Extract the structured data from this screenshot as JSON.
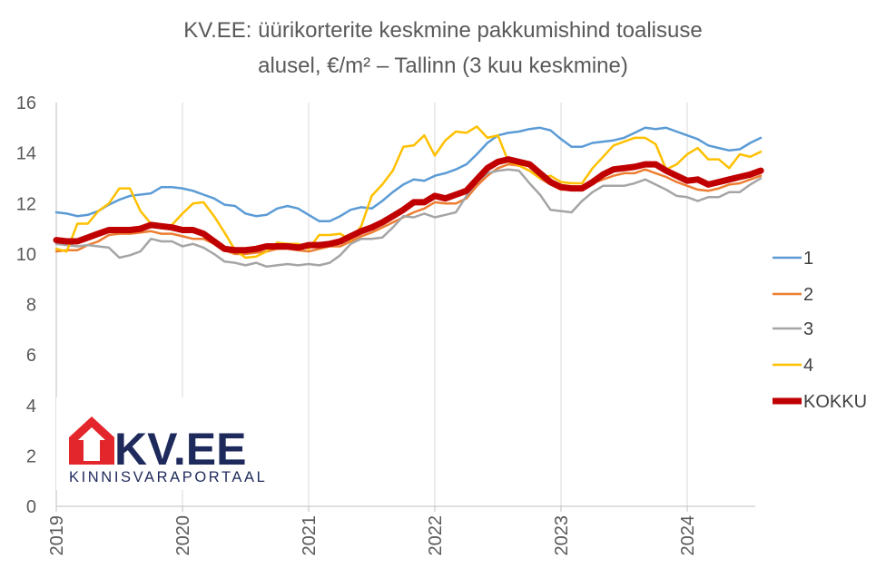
{
  "chart_data": {
    "type": "line",
    "title_lines": [
      "KV.EE: üürikorterite keskmine pakkumishind toalisuse",
      "alusel, €/m² – Tallinn (3 kuu keskmine)"
    ],
    "xlabel": "",
    "ylabel": "",
    "ylim": [
      0,
      16
    ],
    "yticks": [
      0,
      2,
      4,
      6,
      8,
      10,
      12,
      14,
      16
    ],
    "x_start": 2019.0,
    "x_step_months": 1,
    "xticks": [
      "2019",
      "2020",
      "2021",
      "2022",
      "2023",
      "2024"
    ],
    "grid": "vertical",
    "legend": "right",
    "series": [
      {
        "name": "1",
        "color": "#5b9bd5",
        "width": 2.5,
        "values": [
          11.65,
          11.6,
          11.5,
          11.55,
          11.7,
          11.95,
          12.15,
          12.3,
          12.35,
          12.4,
          12.65,
          12.65,
          12.6,
          12.5,
          12.35,
          12.2,
          11.95,
          11.9,
          11.6,
          11.5,
          11.55,
          11.8,
          11.9,
          11.8,
          11.55,
          11.3,
          11.3,
          11.5,
          11.75,
          11.85,
          11.8,
          12.1,
          12.45,
          12.75,
          12.95,
          12.9,
          13.1,
          13.2,
          13.35,
          13.55,
          13.95,
          14.4,
          14.7,
          14.8,
          14.85,
          14.95,
          15.0,
          14.9,
          14.55,
          14.25,
          14.25,
          14.4,
          14.45,
          14.5,
          14.6,
          14.8,
          15.0,
          14.95,
          15.0,
          14.85,
          14.7,
          14.55,
          14.3,
          14.2,
          14.1,
          14.15,
          14.4,
          14.6
        ]
      },
      {
        "name": "2",
        "color": "#ed7d31",
        "width": 2.5,
        "values": [
          10.1,
          10.15,
          10.15,
          10.35,
          10.5,
          10.75,
          10.8,
          10.8,
          10.85,
          10.9,
          10.8,
          10.8,
          10.7,
          10.6,
          10.6,
          10.4,
          10.15,
          10.0,
          10.0,
          10.05,
          10.1,
          10.2,
          10.2,
          10.15,
          10.1,
          10.2,
          10.3,
          10.3,
          10.5,
          10.7,
          10.85,
          11.05,
          11.25,
          11.45,
          11.65,
          11.8,
          12.05,
          12.0,
          12.0,
          12.2,
          12.7,
          13.1,
          13.4,
          13.55,
          13.5,
          13.3,
          13.0,
          12.75,
          12.55,
          12.55,
          12.65,
          12.8,
          12.95,
          13.1,
          13.2,
          13.2,
          13.35,
          13.2,
          13.05,
          12.85,
          12.7,
          12.55,
          12.5,
          12.6,
          12.75,
          12.8,
          12.95,
          13.1
        ]
      },
      {
        "name": "3",
        "color": "#a5a5a5",
        "width": 2.5,
        "values": [
          10.4,
          10.35,
          10.3,
          10.35,
          10.3,
          10.25,
          9.85,
          9.95,
          10.1,
          10.6,
          10.5,
          10.5,
          10.3,
          10.4,
          10.25,
          10.0,
          9.7,
          9.65,
          9.55,
          9.65,
          9.5,
          9.55,
          9.6,
          9.55,
          9.6,
          9.55,
          9.65,
          9.95,
          10.4,
          10.6,
          10.6,
          10.65,
          11.05,
          11.5,
          11.45,
          11.6,
          11.45,
          11.55,
          11.65,
          12.3,
          12.85,
          13.2,
          13.3,
          13.35,
          13.3,
          12.8,
          12.35,
          11.75,
          11.7,
          11.65,
          12.1,
          12.45,
          12.7,
          12.7,
          12.7,
          12.8,
          12.95,
          12.75,
          12.55,
          12.3,
          12.25,
          12.1,
          12.25,
          12.25,
          12.45,
          12.45,
          12.75,
          13.0
        ]
      },
      {
        "name": "4",
        "color": "#ffc000",
        "width": 2.5,
        "values": [
          10.2,
          10.1,
          11.2,
          11.2,
          11.7,
          12.0,
          12.6,
          12.6,
          11.7,
          11.2,
          11.1,
          11.15,
          11.6,
          12.0,
          12.05,
          11.5,
          10.85,
          10.15,
          9.85,
          9.9,
          10.1,
          10.45,
          10.4,
          10.4,
          10.2,
          10.75,
          10.75,
          10.8,
          10.55,
          11.1,
          12.3,
          12.75,
          13.3,
          14.25,
          14.3,
          14.7,
          13.9,
          14.5,
          14.85,
          14.8,
          15.05,
          14.6,
          14.7,
          13.65,
          13.5,
          13.3,
          13.0,
          13.1,
          12.85,
          12.8,
          12.8,
          13.4,
          13.85,
          14.3,
          14.45,
          14.6,
          14.6,
          14.35,
          13.35,
          13.55,
          13.95,
          14.2,
          13.75,
          13.75,
          13.4,
          13.95,
          13.85,
          14.05
        ]
      },
      {
        "name": "KOKKU",
        "color": "#c00000",
        "width": 7,
        "values": [
          10.55,
          10.5,
          10.5,
          10.65,
          10.8,
          10.95,
          10.95,
          10.95,
          11.0,
          11.15,
          11.1,
          11.05,
          10.95,
          10.95,
          10.8,
          10.5,
          10.2,
          10.15,
          10.15,
          10.2,
          10.3,
          10.3,
          10.3,
          10.25,
          10.35,
          10.35,
          10.4,
          10.5,
          10.7,
          10.9,
          11.05,
          11.25,
          11.5,
          11.75,
          12.05,
          12.05,
          12.3,
          12.2,
          12.35,
          12.5,
          12.95,
          13.4,
          13.65,
          13.75,
          13.65,
          13.55,
          13.2,
          12.85,
          12.65,
          12.6,
          12.6,
          12.85,
          13.15,
          13.35,
          13.4,
          13.45,
          13.55,
          13.55,
          13.3,
          13.1,
          12.9,
          12.95,
          12.75,
          12.85,
          12.95,
          13.05,
          13.15,
          13.3
        ]
      }
    ]
  },
  "logo": {
    "text": "KV.EE",
    "subtext": "KINNISVARAPORTAAL",
    "red": "#e3262b",
    "navy": "#1f2a5c"
  }
}
